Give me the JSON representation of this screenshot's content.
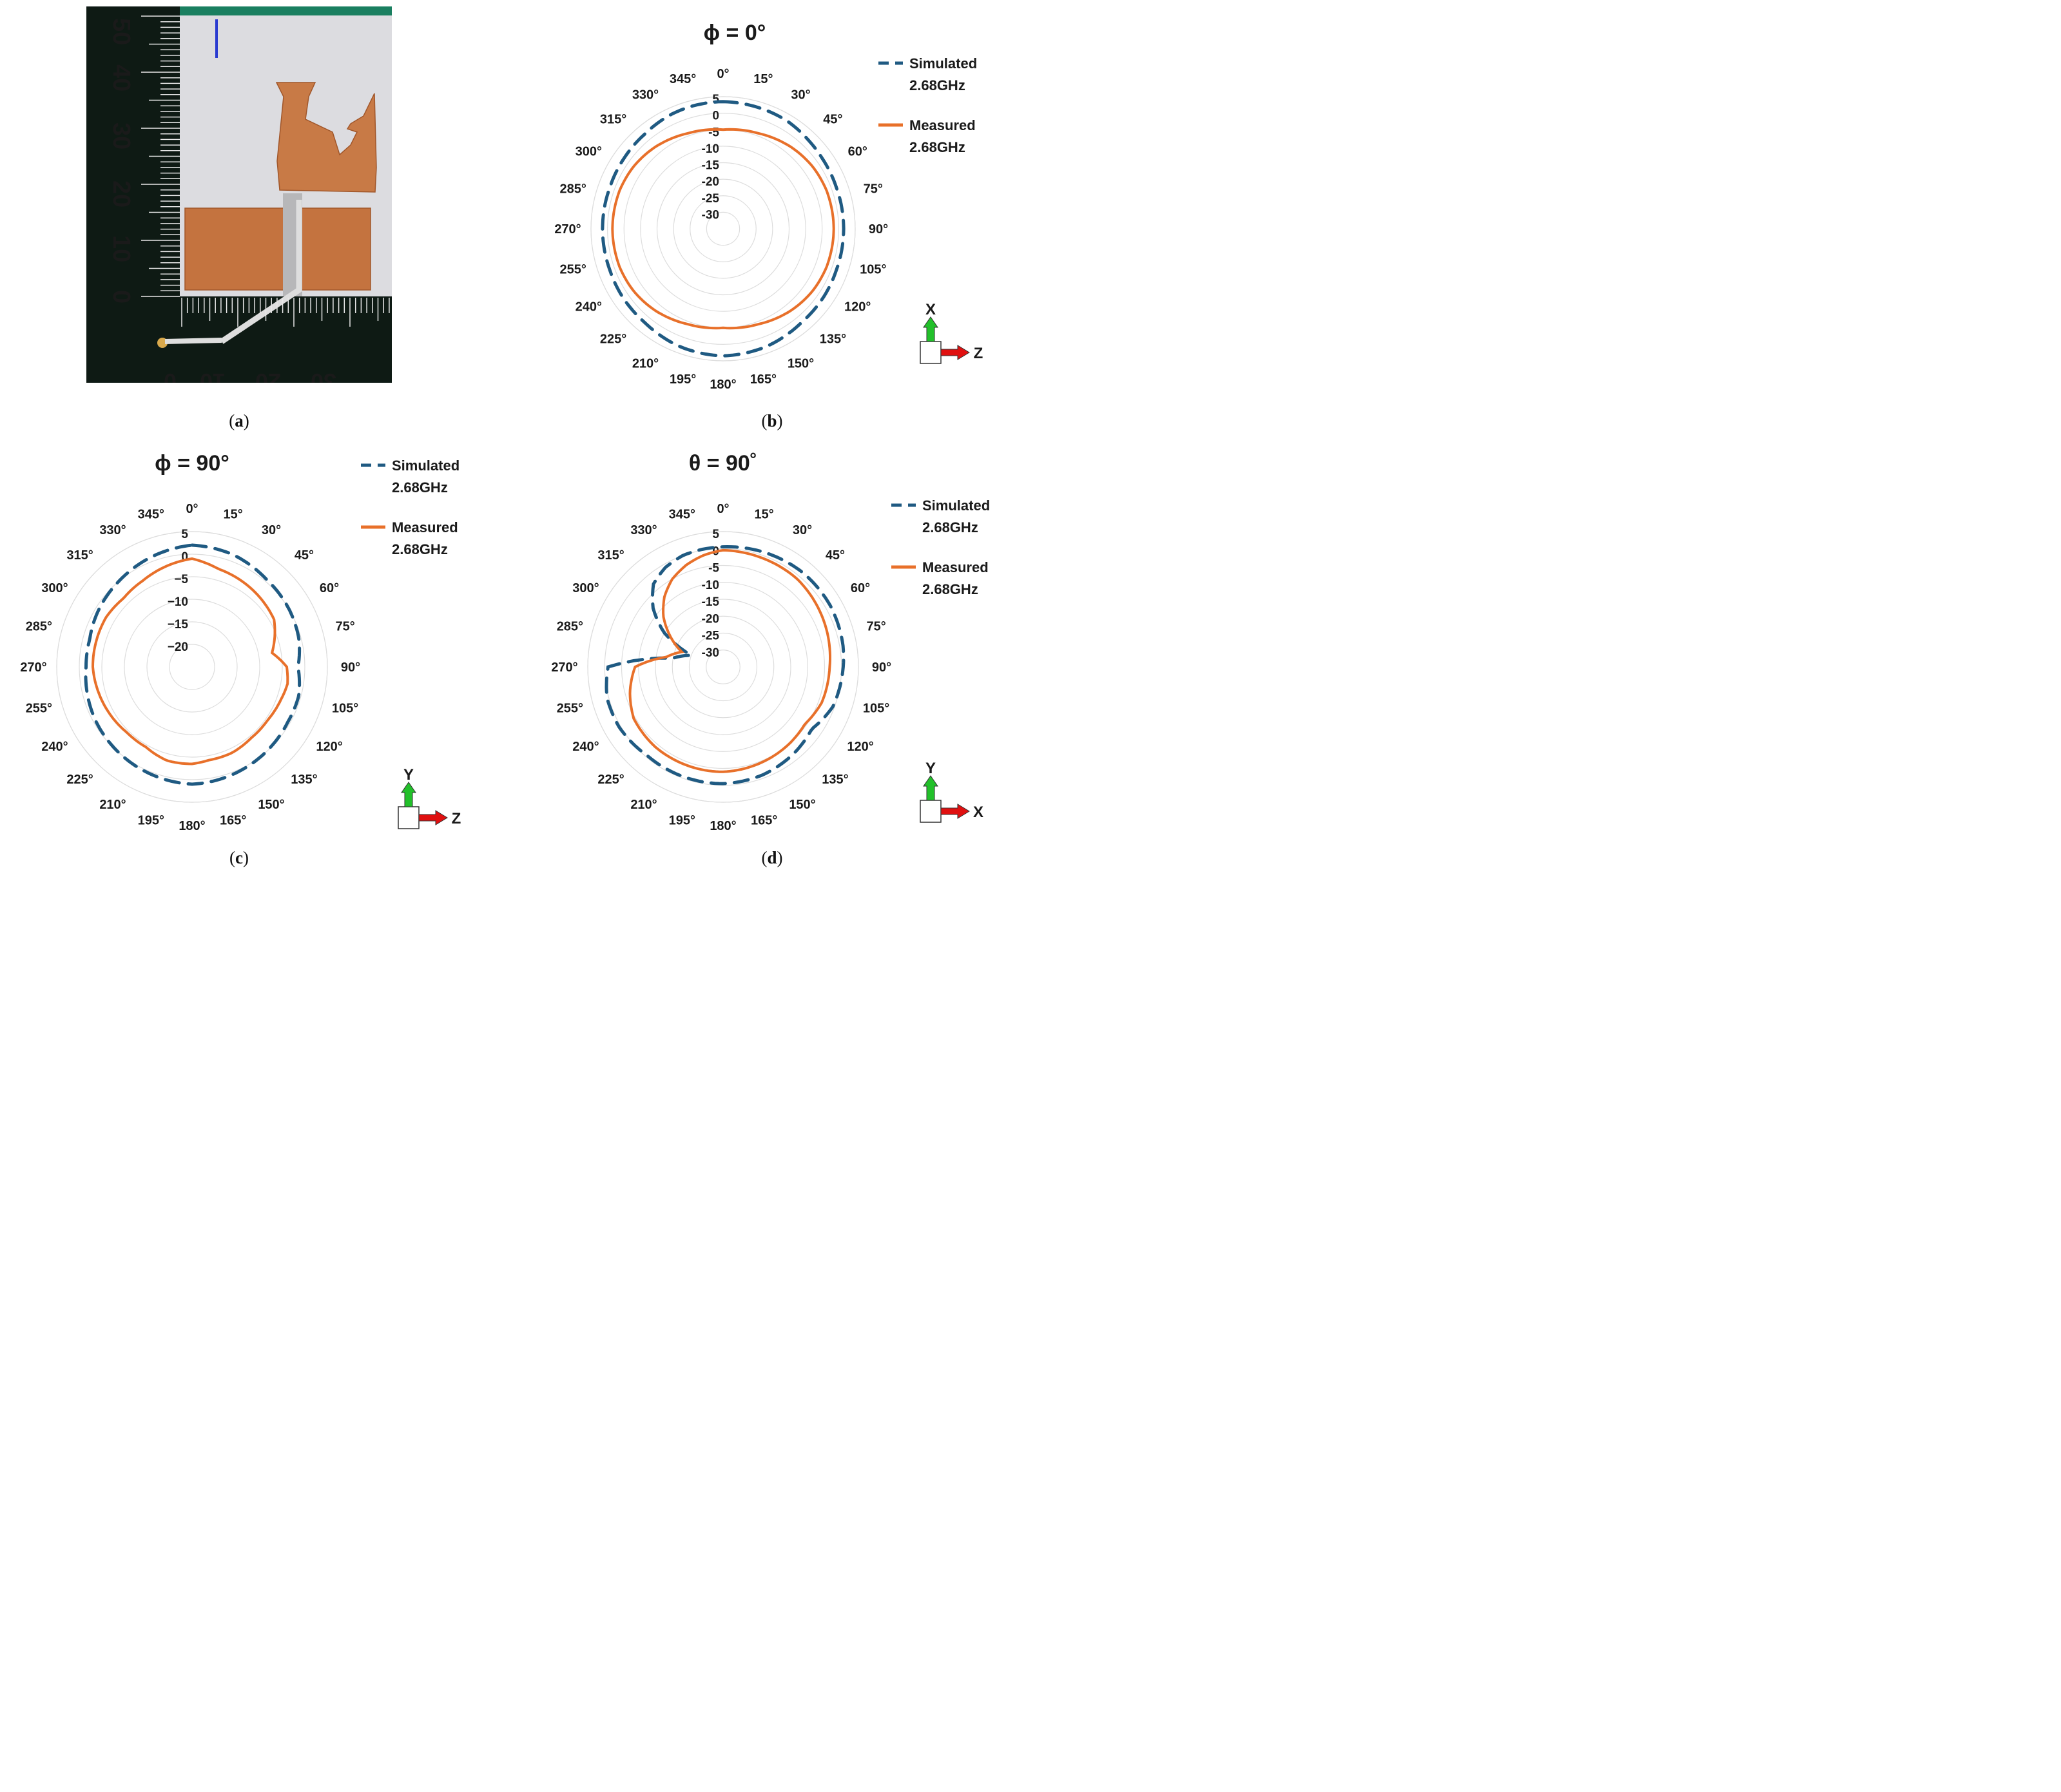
{
  "captions": [
    "(a)",
    "(b)",
    "(c)",
    "(d)"
  ],
  "caption_letters": [
    "a",
    "b",
    "c",
    "d"
  ],
  "photo": {
    "ruler_left_labels": [
      "50",
      "40",
      "30",
      "20",
      "10",
      "0"
    ],
    "ruler_bottom_labels": [
      "0",
      "10",
      "20",
      "30"
    ]
  },
  "colors": {
    "simulated": "#1f5a82",
    "measured": "#e8702a",
    "grid": "#dddddd",
    "arrow_green": "#22c02a",
    "arrow_red": "#e01010"
  },
  "chart_data": [
    {
      "type": "polar",
      "panel": "b",
      "title": "ϕ = 0°",
      "angle_labels": [
        "0°",
        "15°",
        "30°",
        "45°",
        "60°",
        "75°",
        "90°",
        "105°",
        "120°",
        "135°",
        "150°",
        "165°",
        "180°",
        "195°",
        "210°",
        "225°",
        "240°",
        "255°",
        "270°",
        "285°",
        "300°",
        "315°",
        "330°",
        "345°"
      ],
      "radial_ticks": [
        "5",
        "0",
        "-5",
        "-10",
        "-15",
        "-20",
        "-25",
        "-30"
      ],
      "rlim": [
        -35,
        5
      ],
      "axis_labels": {
        "up": "X",
        "right": "Z"
      },
      "series": [
        {
          "name": "Simulated\n2.68GHz",
          "legend_line1": "Simulated",
          "legend_line2": "2.68GHz",
          "style": "dashed",
          "theta": [
            0,
            30,
            45,
            55,
            70,
            90,
            110,
            125,
            140,
            150,
            160,
            180,
            200,
            210,
            220,
            235,
            250,
            270,
            290,
            305,
            320,
            335,
            345,
            360
          ],
          "r": [
            3.5,
            3.0,
            2.2,
            1.8,
            1.5,
            1.5,
            1.5,
            1.8,
            2.0,
            2.5,
            3.0,
            3.5,
            3.0,
            2.5,
            2.0,
            1.8,
            1.5,
            1.5,
            1.5,
            1.8,
            2.2,
            3.0,
            3.3,
            3.5
          ]
        },
        {
          "name": "Measured\n2.68GHz",
          "legend_line1": "Measured",
          "legend_line2": "2.68GHz",
          "style": "solid",
          "theta": [
            0,
            20,
            40,
            55,
            70,
            90,
            110,
            125,
            140,
            160,
            180,
            200,
            220,
            235,
            250,
            270,
            290,
            305,
            320,
            340,
            360
          ],
          "r": [
            -5,
            -4.2,
            -2.8,
            -2.0,
            -1.6,
            -1.5,
            -1.6,
            -2.0,
            -2.8,
            -4.2,
            -5,
            -4.2,
            -2.8,
            -2.0,
            -1.6,
            -1.5,
            -1.6,
            -2.0,
            -2.8,
            -4.2,
            -5
          ]
        }
      ]
    },
    {
      "type": "polar",
      "panel": "c",
      "title": "ϕ = 90°",
      "angle_labels": [
        "0°",
        "15°",
        "30°",
        "45°",
        "60°",
        "75°",
        "90°",
        "105°",
        "120°",
        "135°",
        "150°",
        "165°",
        "180°",
        "195°",
        "210°",
        "225°",
        "240°",
        "255°",
        "270°",
        "285°",
        "300°",
        "315°",
        "330°",
        "345°"
      ],
      "radial_ticks": [
        "5",
        "0",
        "−5",
        "−10",
        "−15",
        "−20"
      ],
      "rlim": [
        -25,
        5
      ],
      "axis_labels": {
        "up": "Y",
        "right": "Z"
      },
      "series": [
        {
          "name": "Simulated\n2.68GHz",
          "legend_line1": "Simulated",
          "legend_line2": "2.68GHz",
          "style": "dashed",
          "theta": [
            0,
            20,
            40,
            60,
            75,
            90,
            105,
            120,
            140,
            160,
            180,
            200,
            220,
            240,
            255,
            270,
            285,
            300,
            320,
            340,
            360
          ],
          "r": [
            2.0,
            1.5,
            0.5,
            0,
            -0.5,
            -1.5,
            -0.5,
            -0.5,
            0,
            0.5,
            1.0,
            0.5,
            0,
            -0.5,
            -1.0,
            -1.5,
            -1.5,
            -0.8,
            0,
            1.0,
            2.0
          ]
        },
        {
          "name": "Measured\n2.68GHz",
          "legend_line1": "Measured",
          "legend_line2": "2.68GHz",
          "style": "solid",
          "theta": [
            0,
            15,
            30,
            45,
            60,
            70,
            80,
            90,
            100,
            110,
            125,
            140,
            155,
            170,
            180,
            195,
            210,
            225,
            240,
            255,
            270,
            285,
            300,
            315,
            330,
            345,
            360
          ],
          "r": [
            -1.0,
            -2.5,
            -3.0,
            -3.5,
            -4.0,
            -5.5,
            -7.0,
            -4.0,
            -3.5,
            -4.0,
            -4.5,
            -4.5,
            -4.0,
            -4.0,
            -3.5,
            -3.5,
            -4.5,
            -4.5,
            -4.0,
            -3.5,
            -3.0,
            -3.0,
            -3.0,
            -3.5,
            -3.0,
            -2.0,
            -1.0
          ]
        }
      ]
    },
    {
      "type": "polar",
      "panel": "d",
      "title": "θ = 90˚",
      "angle_labels": [
        "0°",
        "15°",
        "30°",
        "45°",
        "60°",
        "75°",
        "90°",
        "105°",
        "120°",
        "135°",
        "150°",
        "165°",
        "180°",
        "195°",
        "210°",
        "225°",
        "240°",
        "255°",
        "270°",
        "285°",
        "300°",
        "315°",
        "330°",
        "345°"
      ],
      "radial_ticks": [
        "5",
        "0",
        "-5",
        "-10",
        "-15",
        "-20",
        "-25",
        "-30"
      ],
      "rlim": [
        -35,
        5
      ],
      "axis_labels": {
        "up": "Y",
        "right": "X"
      },
      "series": [
        {
          "name": "Simulated\n2.68GHz",
          "legend_line1": "Simulated",
          "legend_line2": "2.68GHz",
          "style": "dashed",
          "theta": [
            0,
            20,
            40,
            60,
            80,
            90,
            110,
            125,
            140,
            160,
            180,
            200,
            220,
            240,
            255,
            270,
            280,
            290,
            300,
            310,
            320,
            330,
            340,
            350,
            360
          ],
          "r": [
            0.5,
            1.0,
            1.5,
            1.5,
            1.0,
            0.5,
            -0.5,
            -3.0,
            -2.0,
            -1.0,
            -0.5,
            -0.5,
            -0.5,
            0.5,
            0.5,
            -1.0,
            -20,
            -25,
            -15,
            -8,
            -3,
            -1,
            0,
            0.3,
            0.5
          ]
        },
        {
          "name": "Measured\n2.68GHz",
          "legend_line1": "Measured",
          "legend_line2": "2.68GHz",
          "style": "solid",
          "theta": [
            0,
            20,
            40,
            60,
            80,
            90,
            110,
            125,
            140,
            160,
            180,
            200,
            220,
            240,
            255,
            270,
            280,
            290,
            300,
            310,
            320,
            330,
            340,
            350,
            360
          ],
          "r": [
            -0.5,
            -0.8,
            -1.0,
            -2.0,
            -3.0,
            -3.5,
            -4.0,
            -5.5,
            -5.0,
            -4.5,
            -4.0,
            -4.0,
            -4.0,
            -4.5,
            -6.5,
            -9.0,
            -18.0,
            -22.0,
            -17.0,
            -12.0,
            -8.0,
            -5.0,
            -3.0,
            -1.5,
            -0.5
          ]
        }
      ]
    }
  ]
}
